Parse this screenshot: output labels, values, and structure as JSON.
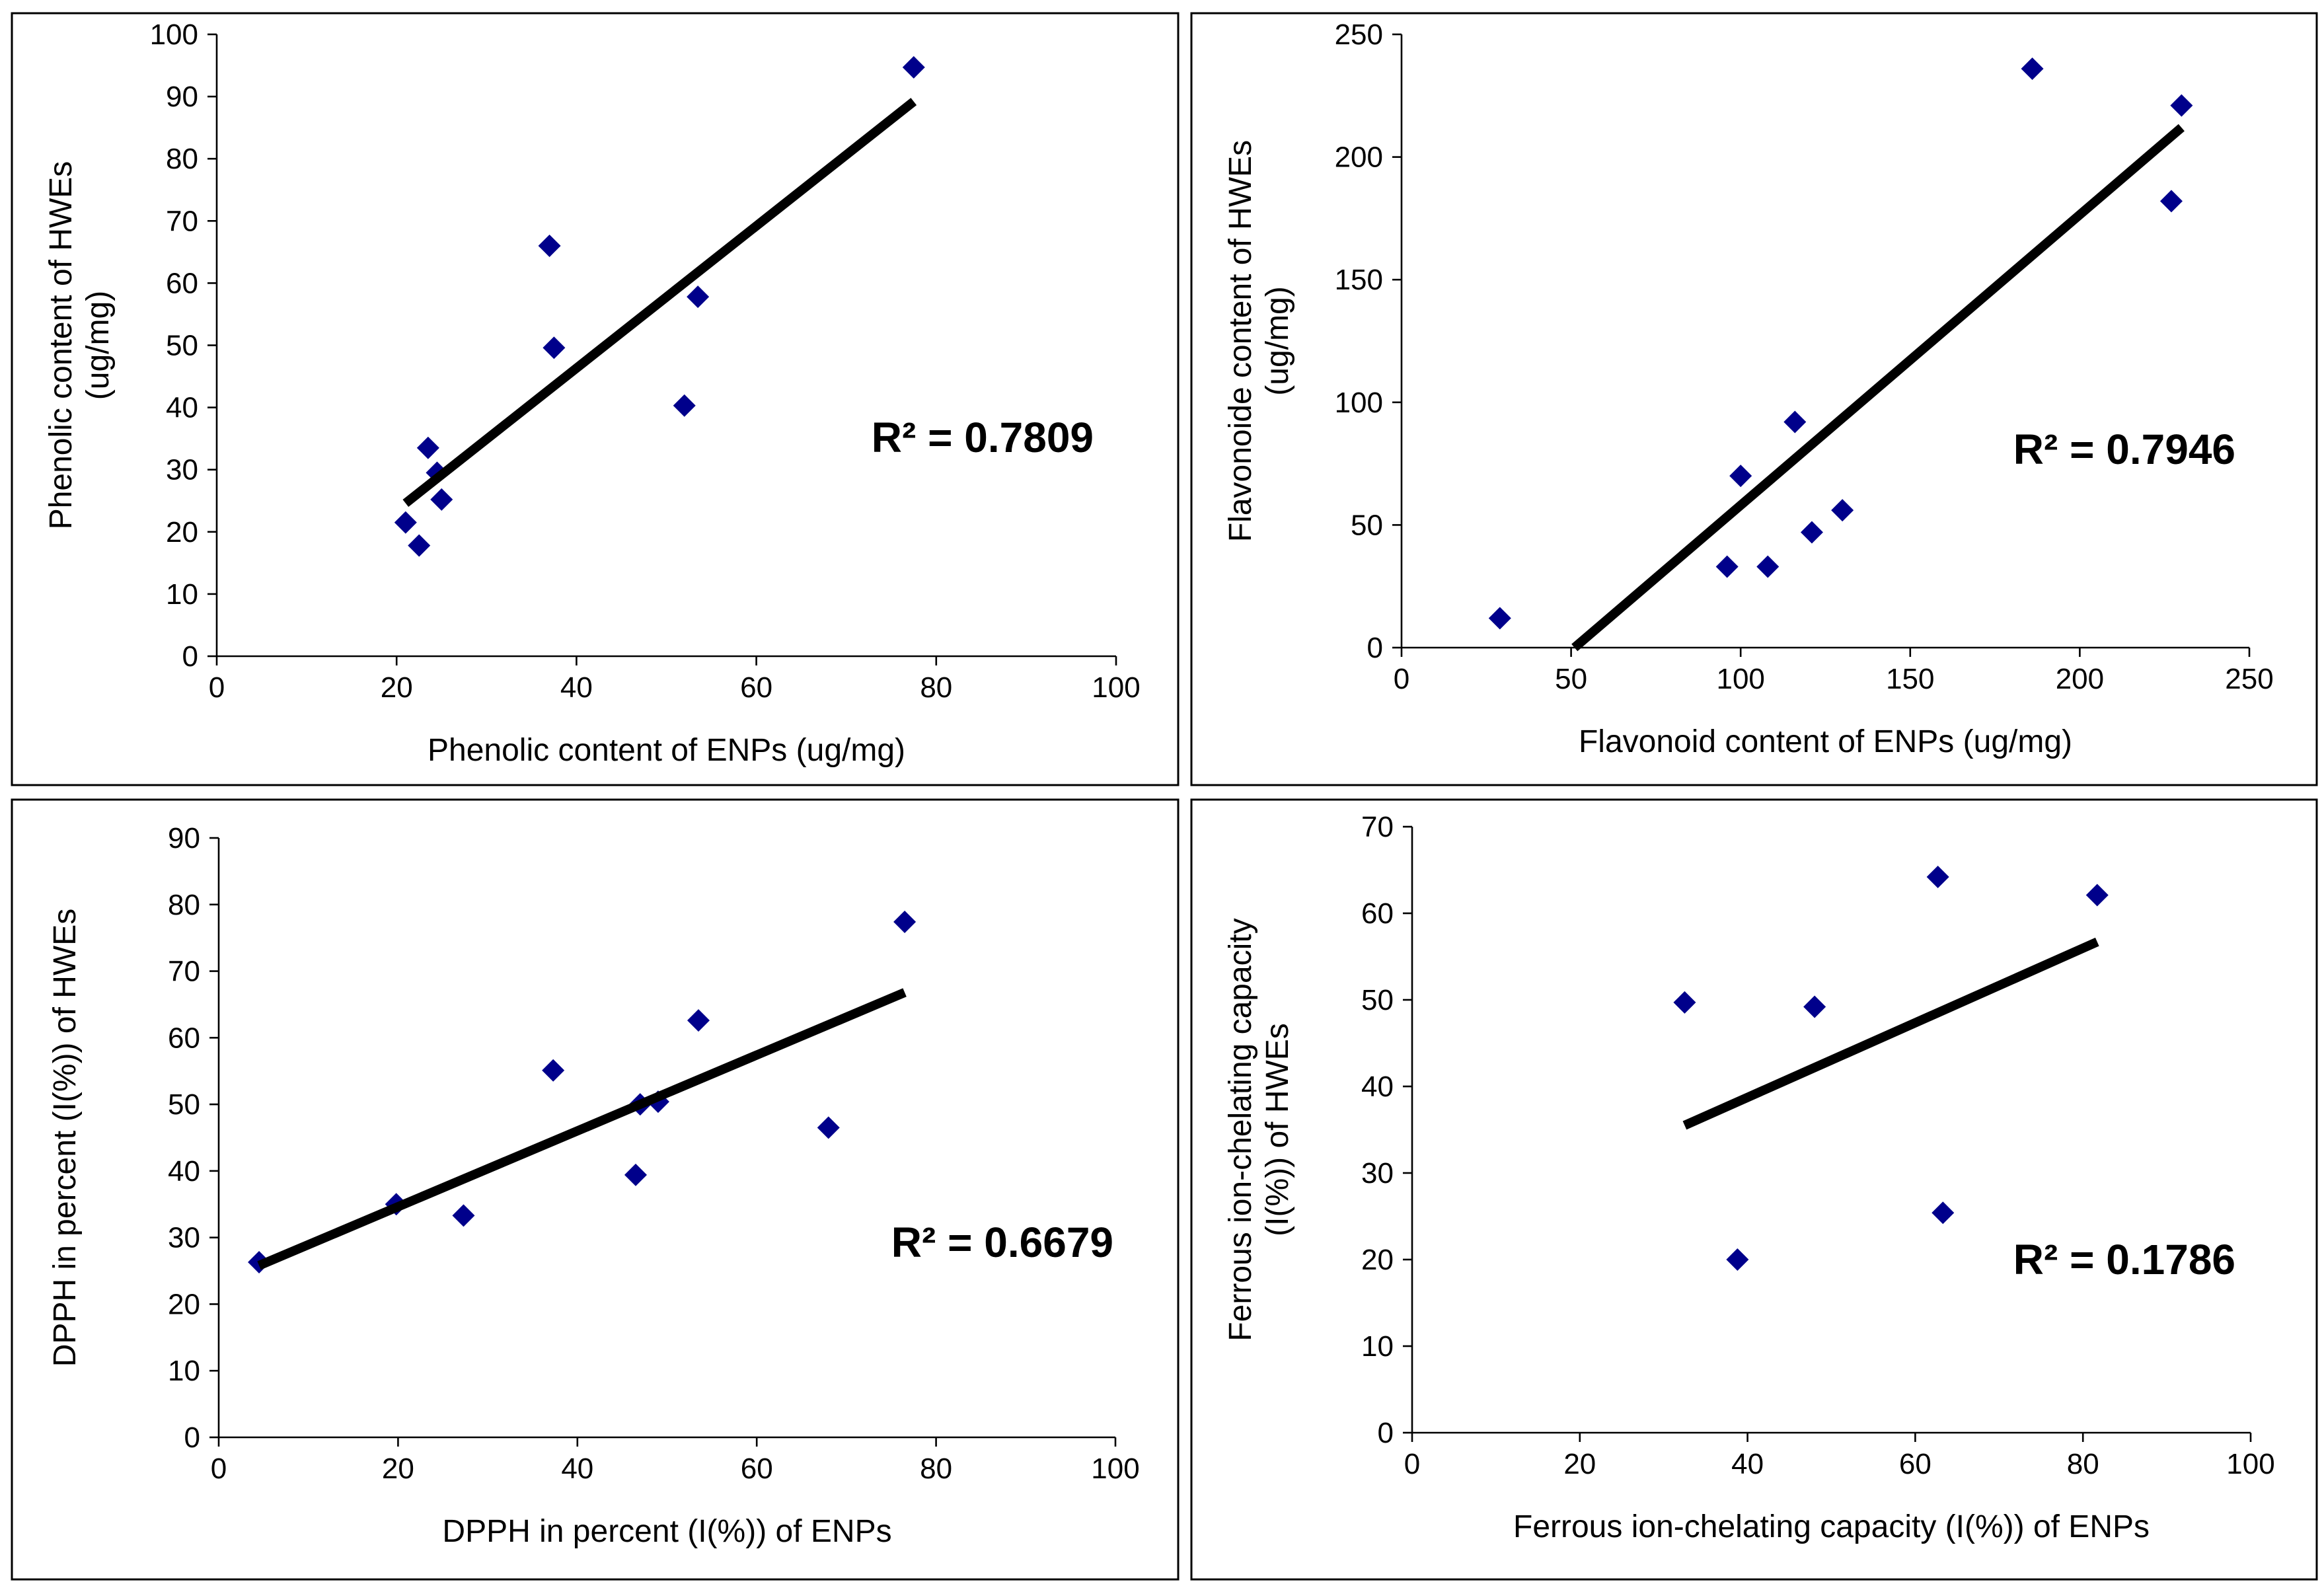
{
  "figure": {
    "colors": {
      "marker": "#00008b",
      "trendline": "#000000",
      "frame": "#000000",
      "background": "#ffffff"
    }
  },
  "chart_data": [
    {
      "id": "phenolic",
      "type": "scatter",
      "xlabel": "Phenolic content of ENPs (ug/mg)",
      "ylabel_lines": [
        "Phenolic content of HWEs",
        "(ug/mg)"
      ],
      "xlim": [
        0,
        100
      ],
      "ylim": [
        0,
        100
      ],
      "xticks": [
        0,
        20,
        40,
        60,
        80,
        100
      ],
      "yticks": [
        0,
        10,
        20,
        30,
        40,
        50,
        60,
        70,
        80,
        90,
        100
      ],
      "points": [
        [
          21.0,
          21.5
        ],
        [
          22.5,
          17.8
        ],
        [
          23.5,
          33.5
        ],
        [
          24.5,
          29.5
        ],
        [
          25.0,
          25.2
        ],
        [
          37.0,
          66.0
        ],
        [
          37.5,
          49.6
        ],
        [
          52.0,
          40.3
        ],
        [
          53.5,
          57.8
        ],
        [
          77.5,
          94.7
        ]
      ],
      "trendline": {
        "x": [
          21.0,
          77.5
        ],
        "y": [
          24.6,
          89.2
        ]
      },
      "annotation": "R² = 0.7809",
      "grid": false,
      "legend": "none"
    },
    {
      "id": "flavonoid",
      "type": "scatter",
      "xlabel": "Flavonoid content of ENPs (ug/mg)",
      "ylabel_lines": [
        "Flavonoide content of HWEs",
        "(ug/mg)"
      ],
      "xlim": [
        0,
        250
      ],
      "ylim": [
        0,
        250
      ],
      "xticks": [
        0,
        50,
        100,
        150,
        200,
        250
      ],
      "yticks": [
        0,
        50,
        100,
        150,
        200,
        250
      ],
      "points": [
        [
          29.0,
          12.0
        ],
        [
          96.0,
          33.0
        ],
        [
          100.0,
          70.0
        ],
        [
          108.0,
          33.0
        ],
        [
          116.0,
          92.0
        ],
        [
          121.0,
          47.0
        ],
        [
          130.0,
          56.0
        ],
        [
          186.0,
          236.0
        ],
        [
          227.0,
          182.0
        ],
        [
          230.0,
          221.0
        ]
      ],
      "trendline": {
        "x": [
          51.0,
          230.0
        ],
        "y": [
          0.0,
          212.0
        ]
      },
      "annotation": "R² = 0.7946",
      "grid": false,
      "legend": "none"
    },
    {
      "id": "dpph",
      "type": "scatter",
      "xlabel": "DPPH in percent (I(%)) of ENPs",
      "ylabel_lines": [
        "DPPH in percent (I(%)) of HWEs"
      ],
      "xlim": [
        0,
        100
      ],
      "ylim": [
        0,
        90
      ],
      "xticks": [
        0,
        20,
        40,
        60,
        80,
        100
      ],
      "yticks": [
        0,
        10,
        20,
        30,
        40,
        50,
        60,
        70,
        80,
        90
      ],
      "points": [
        [
          4.5,
          26.3
        ],
        [
          19.8,
          35.0
        ],
        [
          27.3,
          33.3
        ],
        [
          37.3,
          55.1
        ],
        [
          46.5,
          39.4
        ],
        [
          47.0,
          50.0
        ],
        [
          49.0,
          50.4
        ],
        [
          53.5,
          62.6
        ],
        [
          68.0,
          46.5
        ],
        [
          76.5,
          77.4
        ]
      ],
      "trendline": {
        "x": [
          4.5,
          76.5
        ],
        "y": [
          25.8,
          66.8
        ]
      },
      "annotation": "R² = 0.6679",
      "grid": false,
      "legend": "none"
    },
    {
      "id": "ferrous",
      "type": "scatter",
      "xlabel": "Ferrous ion-chelating capacity (I(%)) of ENPs",
      "ylabel_lines": [
        "Ferrous ion-chelating capacity",
        "(I(%)) of HWEs"
      ],
      "xlim": [
        0,
        100
      ],
      "ylim": [
        0,
        70
      ],
      "xticks": [
        0,
        20,
        40,
        60,
        80,
        100
      ],
      "yticks": [
        0,
        10,
        20,
        30,
        40,
        50,
        60,
        70
      ],
      "points": [
        [
          32.5,
          49.7
        ],
        [
          38.8,
          20.0
        ],
        [
          48.0,
          49.2
        ],
        [
          62.7,
          64.2
        ],
        [
          63.3,
          25.4
        ],
        [
          81.7,
          62.1
        ]
      ],
      "trendline": {
        "x": [
          32.5,
          81.7
        ],
        "y": [
          35.5,
          56.7
        ]
      },
      "annotation": "R² = 0.1786",
      "grid": false,
      "legend": "none"
    }
  ]
}
